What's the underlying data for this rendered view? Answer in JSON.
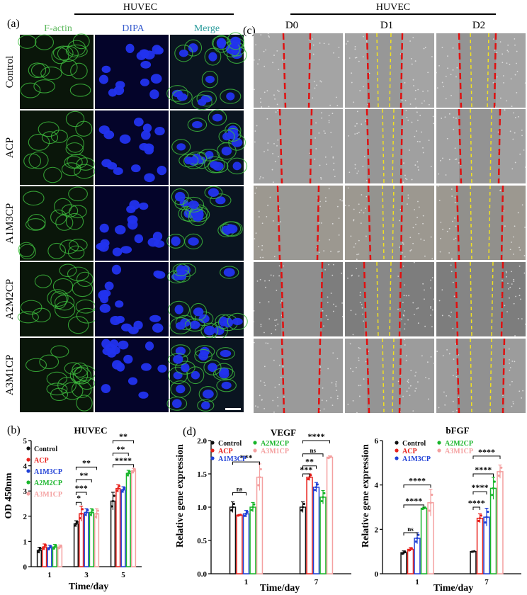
{
  "figure_a": {
    "panel_label": "(a)",
    "cell_line": "HUVEC",
    "columns": [
      {
        "label": "F-actin",
        "color": "#5cb85c"
      },
      {
        "label": "DIPA",
        "color": "#3a5fcf"
      },
      {
        "label": "Merge",
        "color": "#2e9e9e"
      }
    ],
    "rows": [
      "Control",
      "ACP",
      "A1M3CP",
      "A2M2CP",
      "A3M1CP"
    ]
  },
  "figure_c": {
    "panel_label": "(c)",
    "cell_line": "HUVEC",
    "columns": [
      "D0",
      "D1",
      "D2"
    ],
    "rows": [
      "Control",
      "ACP",
      "A1M3CP",
      "A2M2CP",
      "A3M1CP"
    ]
  },
  "colors": {
    "Control": "#111111",
    "ACP": "#e8211c",
    "A1M3CP": "#1f3fd6",
    "A2M2CP": "#18b52a",
    "A3M1CP": "#f4a0a0"
  },
  "chart_data": [
    {
      "panel_label": "(b)",
      "type": "bar",
      "title": "HUVEC",
      "xlabel": "Time/day",
      "ylabel": "OD 450nm",
      "categories": [
        "1",
        "3",
        "5"
      ],
      "ylim": [
        0,
        5
      ],
      "yticks": [
        0,
        1,
        2,
        3,
        4,
        5
      ],
      "legend_position": "top-left",
      "series": [
        {
          "name": "Control",
          "values": [
            0.65,
            1.7,
            2.6
          ],
          "errors": [
            0.12,
            0.12,
            0.35
          ]
        },
        {
          "name": "ACP",
          "values": [
            0.78,
            2.1,
            3.1
          ],
          "errors": [
            0.12,
            0.3,
            0.15
          ]
        },
        {
          "name": "A1M3CP",
          "values": [
            0.75,
            2.15,
            3.05
          ],
          "errors": [
            0.1,
            0.15,
            0.12
          ]
        },
        {
          "name": "A2M2CP",
          "values": [
            0.78,
            2.15,
            3.7
          ],
          "errors": [
            0.1,
            0.15,
            0.12
          ]
        },
        {
          "name": "A3M1CP",
          "values": [
            0.78,
            2.1,
            3.8
          ],
          "errors": [
            0.08,
            0.2,
            0.1
          ]
        }
      ],
      "annotations": [
        {
          "text": "*",
          "group": 1,
          "from": 0,
          "to": 1,
          "y": 2.55
        },
        {
          "text": "***",
          "group": 1,
          "from": 0,
          "to": 2,
          "y": 2.95
        },
        {
          "text": "**",
          "group": 1,
          "from": 0,
          "to": 3,
          "y": 3.45
        },
        {
          "text": "**",
          "group": 1,
          "from": 0,
          "to": 4,
          "y": 3.95
        },
        {
          "text": "****",
          "group": 2,
          "from": 0,
          "to": 4,
          "y": 4.05
        },
        {
          "text": "**",
          "group": 2,
          "from": 0,
          "to": 3,
          "y": 4.5
        },
        {
          "text": "**",
          "group": 2,
          "from": 0,
          "to": 4,
          "y": 5.0
        }
      ]
    },
    {
      "panel_label": "(d)",
      "type": "bar",
      "title": "VEGF",
      "xlabel": "Time/day",
      "ylabel": "Relative gene expression",
      "categories": [
        "1",
        "7"
      ],
      "ylim": [
        0,
        2.0
      ],
      "yticks": [
        0,
        0.5,
        1.0,
        1.5,
        2.0
      ],
      "legend_position": "top",
      "series": [
        {
          "name": "Control",
          "values": [
            1.0,
            1.0
          ],
          "errors": [
            0.08,
            0.08
          ]
        },
        {
          "name": "ACP",
          "values": [
            0.88,
            1.45
          ],
          "errors": [
            0.01,
            0.05
          ]
        },
        {
          "name": "A1M3CP",
          "values": [
            0.9,
            1.3
          ],
          "errors": [
            0.05,
            0.07
          ]
        },
        {
          "name": "A2M2CP",
          "values": [
            1.0,
            1.15
          ],
          "errors": [
            0.07,
            0.1
          ]
        },
        {
          "name": "A3M1CP",
          "values": [
            1.45,
            1.75
          ],
          "errors": [
            0.2,
            0.02
          ]
        }
      ],
      "annotations": [
        {
          "text": "ns",
          "group": 0,
          "from": 0,
          "to": 2,
          "y": 1.22
        },
        {
          "text": "***",
          "group": 0,
          "from": 0,
          "to": 4,
          "y": 1.68
        },
        {
          "text": "***",
          "group": 1,
          "from": 0,
          "to": 1,
          "y": 1.5
        },
        {
          "text": "**",
          "group": 1,
          "from": 0,
          "to": 2,
          "y": 1.62
        },
        {
          "text": "ns",
          "group": 1,
          "from": 0,
          "to": 3,
          "y": 1.8
        },
        {
          "text": "****",
          "group": 1,
          "from": 0,
          "to": 4,
          "y": 2.0
        }
      ]
    },
    {
      "panel_label": "",
      "type": "bar",
      "title": "bFGF",
      "xlabel": "Time/day",
      "ylabel": "Relative gene expression",
      "categories": [
        "1",
        "7"
      ],
      "ylim": [
        0,
        6
      ],
      "yticks": [
        0,
        2,
        4,
        6
      ],
      "legend_position": "top",
      "series": [
        {
          "name": "Control",
          "values": [
            0.95,
            1.0
          ],
          "errors": [
            0.08,
            0.02
          ]
        },
        {
          "name": "ACP",
          "values": [
            1.1,
            2.5
          ],
          "errors": [
            0.08,
            0.2
          ]
        },
        {
          "name": "A1M3CP",
          "values": [
            1.6,
            2.55
          ],
          "errors": [
            0.25,
            0.4
          ]
        },
        {
          "name": "A2M2CP",
          "values": [
            2.95,
            3.85
          ],
          "errors": [
            0.05,
            0.5
          ]
        },
        {
          "name": "A3M1CP",
          "values": [
            3.2,
            4.6
          ],
          "errors": [
            0.6,
            0.3
          ]
        }
      ],
      "annotations": [
        {
          "text": "ns",
          "group": 0,
          "from": 0,
          "to": 2,
          "y": 1.85
        },
        {
          "text": "****",
          "group": 0,
          "from": 0,
          "to": 3,
          "y": 3.1
        },
        {
          "text": "****",
          "group": 0,
          "from": 0,
          "to": 4,
          "y": 4.0
        },
        {
          "text": "****",
          "group": 1,
          "from": 0,
          "to": 1,
          "y": 3.0
        },
        {
          "text": "****",
          "group": 1,
          "from": 0,
          "to": 2,
          "y": 3.7
        },
        {
          "text": "****",
          "group": 1,
          "from": 0,
          "to": 3,
          "y": 4.5
        },
        {
          "text": "****",
          "group": 1,
          "from": 0,
          "to": 4,
          "y": 5.3
        }
      ]
    }
  ]
}
